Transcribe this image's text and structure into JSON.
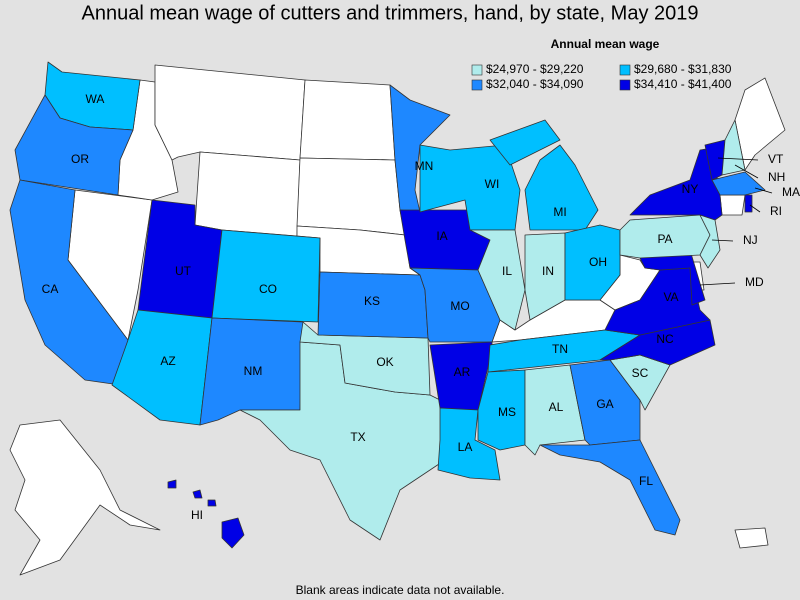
{
  "title": "Annual mean wage of cutters and trimmers, hand, by state, May 2019",
  "legend": {
    "title": "Annual mean wage",
    "classes": [
      {
        "label": "$24,970 - $29,220",
        "color": "#b0ecec"
      },
      {
        "label": "$29,680 - $31,830",
        "color": "#00bfff"
      },
      {
        "label": "$32,040 - $34,090",
        "color": "#1e88ff"
      },
      {
        "label": "$34,410 - $41,400",
        "color": "#0000e6"
      }
    ]
  },
  "states": [
    {
      "label": "WA",
      "class": 1
    },
    {
      "label": "OR",
      "class": 2
    },
    {
      "label": "CA",
      "class": 2
    },
    {
      "label": "UT",
      "class": 3
    },
    {
      "label": "CO",
      "class": 1
    },
    {
      "label": "AZ",
      "class": 1
    },
    {
      "label": "NM",
      "class": 2
    },
    {
      "label": "TX",
      "class": 0
    },
    {
      "label": "OK",
      "class": 0
    },
    {
      "label": "KS",
      "class": 2
    },
    {
      "label": "MN",
      "class": 2
    },
    {
      "label": "IA",
      "class": 3
    },
    {
      "label": "MO",
      "class": 2
    },
    {
      "label": "AR",
      "class": 3
    },
    {
      "label": "LA",
      "class": 1
    },
    {
      "label": "WI",
      "class": 1
    },
    {
      "label": "IL",
      "class": 0
    },
    {
      "label": "MI",
      "class": 1
    },
    {
      "label": "IN",
      "class": 0
    },
    {
      "label": "OH",
      "class": 1
    },
    {
      "label": "TN",
      "class": 1
    },
    {
      "label": "MS",
      "class": 1
    },
    {
      "label": "AL",
      "class": 0
    },
    {
      "label": "GA",
      "class": 2
    },
    {
      "label": "FL",
      "class": 2
    },
    {
      "label": "SC",
      "class": 0
    },
    {
      "label": "NC",
      "class": 3
    },
    {
      "label": "VA",
      "class": 3
    },
    {
      "label": "MD",
      "class": 3
    },
    {
      "label": "PA",
      "class": 0
    },
    {
      "label": "NY",
      "class": 3
    },
    {
      "label": "NJ",
      "class": 0
    },
    {
      "label": "VT",
      "class": 3
    },
    {
      "label": "NH",
      "class": 0
    },
    {
      "label": "MA",
      "class": 2
    },
    {
      "label": "RI",
      "class": 3
    },
    {
      "label": "HI",
      "class": 3
    }
  ],
  "note": "Blank areas indicate data not available."
}
